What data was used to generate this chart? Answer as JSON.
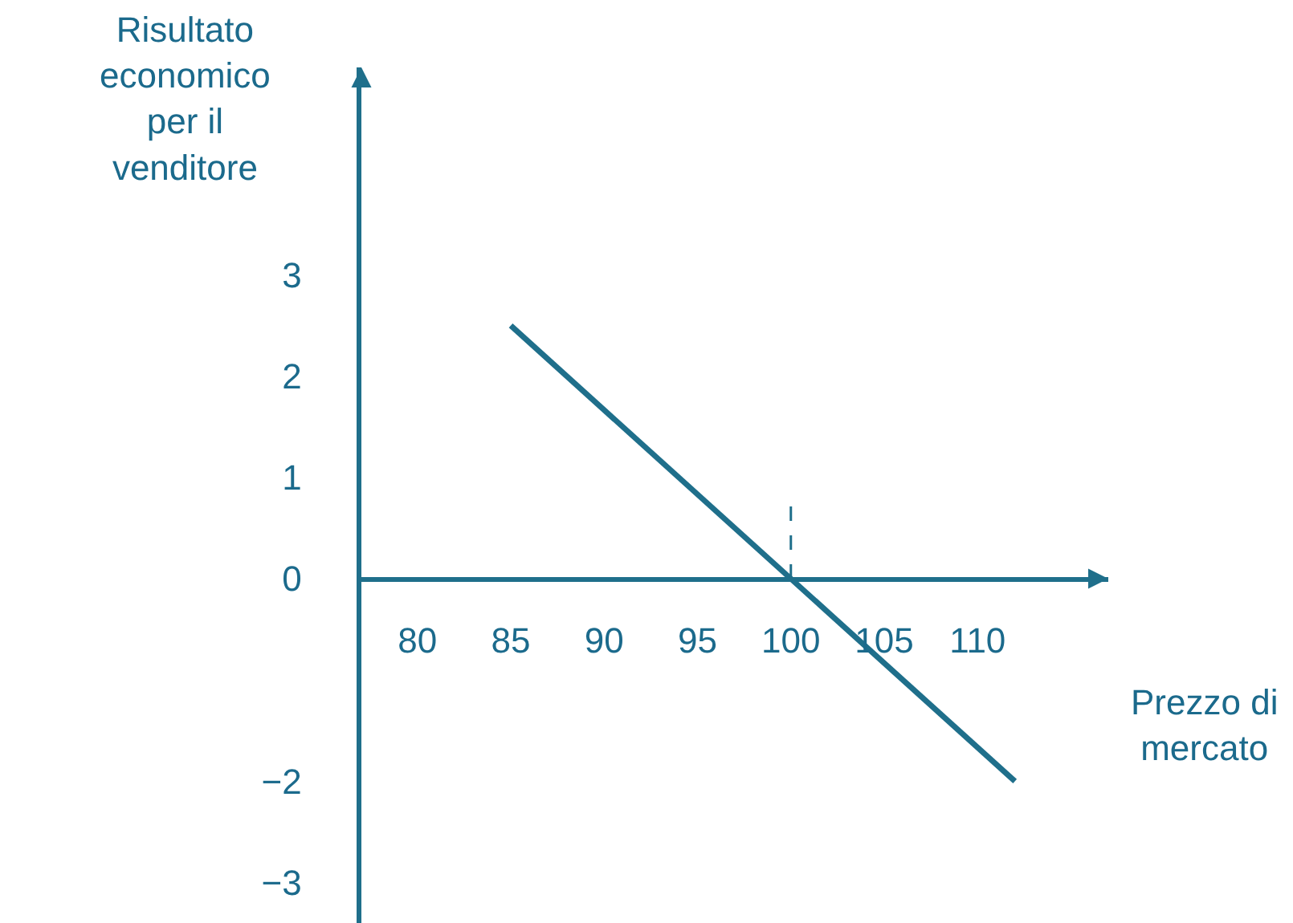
{
  "chart_data": {
    "type": "line",
    "xlabel": "Prezzo di\nmercato",
    "ylabel": "Risultato\neconomico\nper il\nvenditore",
    "x": [
      85,
      112
    ],
    "series": [
      {
        "color": "#1f6f8b",
        "values": [
          2.5,
          -2
        ]
      }
    ],
    "xlim": [
      77,
      117
    ],
    "ylim": [
      -3.4,
      5.05
    ],
    "xticks": [
      80,
      85,
      90,
      95,
      100,
      105,
      110
    ],
    "yticks": [
      3,
      2,
      1,
      0,
      -2,
      -3
    ],
    "ref_lines": [
      {
        "axis": "x",
        "value": 100,
        "line_style": "dashed",
        "color": "#1f6f8b"
      }
    ],
    "marker": "none",
    "line_style": "solid"
  }
}
